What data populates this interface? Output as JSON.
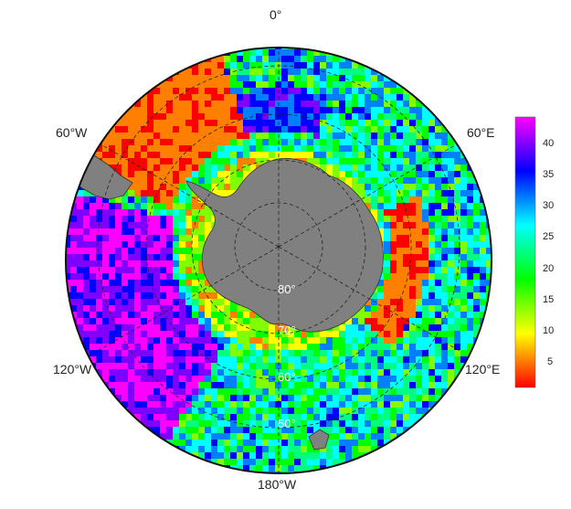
{
  "map": {
    "projection": "south-polar-stereographic",
    "longitude_labels": {
      "top": "0°",
      "upper_right": "60°E",
      "lower_right": "120°E",
      "bottom": "180°W",
      "lower_left": "120°W",
      "upper_left": "60°W"
    },
    "latitude_labels": [
      "80°",
      "70°",
      "60°",
      "50°"
    ],
    "land_color": "#808080",
    "grid_style": "dashed"
  },
  "colorbar": {
    "ticks": [
      "40",
      "35",
      "30",
      "25",
      "20",
      "15",
      "10",
      "5"
    ],
    "range": [
      1,
      44
    ],
    "colormap": [
      "#ff0000",
      "#ff8000",
      "#ffff00",
      "#80ff00",
      "#00ff00",
      "#00ff80",
      "#00ffff",
      "#0080ff",
      "#0000ff",
      "#8000ff",
      "#ff00ff"
    ]
  }
}
